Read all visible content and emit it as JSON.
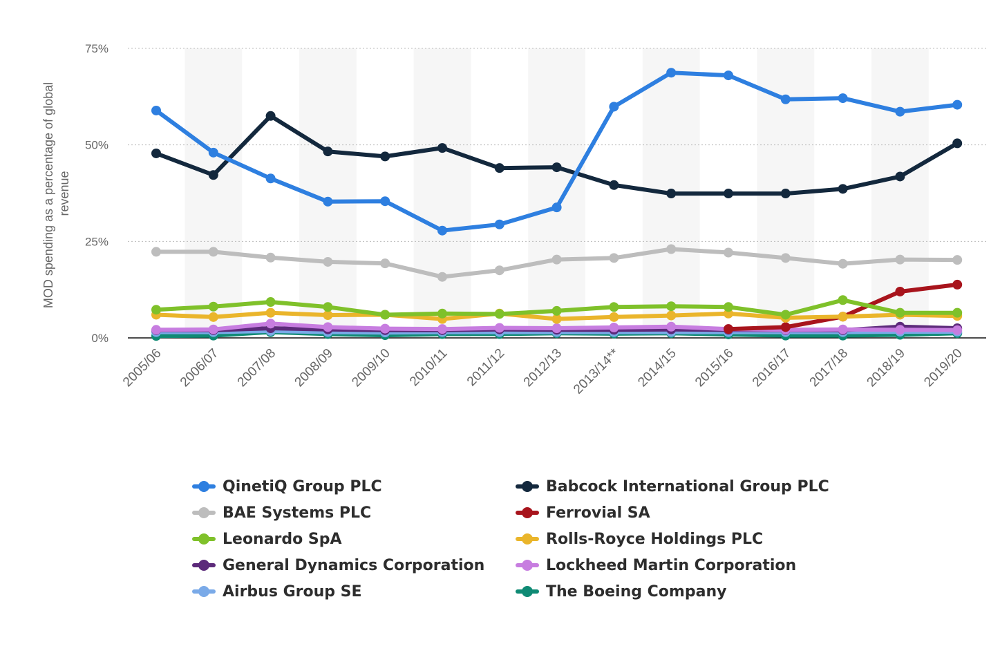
{
  "chart_data": {
    "type": "line",
    "title": "",
    "xlabel": "",
    "ylabel": "MOD spending as a percentage of global revenue",
    "ylim": [
      0,
      75
    ],
    "y_ticks": [
      "0%",
      "25%",
      "50%",
      "75%"
    ],
    "grid": true,
    "legend_position": "bottom",
    "categories": [
      "2005/06",
      "2006/07",
      "2007/08",
      "2008/09",
      "2009/10",
      "2010/11",
      "2011/12",
      "2012/13",
      "2013/14**",
      "2014/15",
      "2015/16",
      "2016/17",
      "2017/18",
      "2018/19",
      "2019/20"
    ],
    "series": [
      {
        "name": "The Boeing Company",
        "color": "#0f8a74",
        "values": [
          0.5,
          0.6,
          1.5,
          1.0,
          0.7,
          1.0,
          1.0,
          1.2,
          1.1,
          1.2,
          0.9,
          0.6,
          0.6,
          0.8,
          1.2
        ]
      },
      {
        "name": "Airbus Group SE",
        "color": "#7aaae8",
        "values": [
          1.5,
          1.5,
          1.8,
          1.5,
          1.4,
          1.5,
          1.5,
          1.5,
          1.5,
          1.5,
          1.5,
          1.5,
          1.5,
          1.6,
          1.6
        ]
      },
      {
        "name": "General Dynamics Corporation",
        "color": "#5c2a7a",
        "values": [
          2.0,
          2.0,
          2.5,
          2.2,
          2.0,
          2.0,
          2.2,
          2.1,
          2.1,
          2.2,
          2.1,
          2.0,
          2.0,
          2.9,
          2.5
        ]
      },
      {
        "name": "Lockheed Martin Corporation",
        "color": "#c77de0",
        "values": [
          2.1,
          2.2,
          3.7,
          2.8,
          2.4,
          2.3,
          2.6,
          2.5,
          2.7,
          2.9,
          2.3,
          2.1,
          2.2,
          2.1,
          2.0
        ]
      },
      {
        "name": "Ferrovial SA",
        "color": "#a8141c",
        "values": [
          null,
          null,
          null,
          null,
          null,
          null,
          null,
          null,
          null,
          null,
          2.3,
          2.8,
          5.5,
          12.0,
          13.8
        ]
      },
      {
        "name": "Rolls-Royce Holdings PLC",
        "color": "#eab52b",
        "values": [
          6.0,
          5.4,
          6.5,
          5.9,
          6.0,
          4.9,
          6.3,
          4.9,
          5.4,
          5.8,
          6.3,
          5.2,
          5.5,
          6.0,
          5.7
        ]
      },
      {
        "name": "Leonardo SpA",
        "color": "#7fc12a",
        "values": [
          7.3,
          8.1,
          9.3,
          8.0,
          6.0,
          6.3,
          6.2,
          7.0,
          8.0,
          8.2,
          8.0,
          6.0,
          9.8,
          6.5,
          6.5
        ]
      },
      {
        "name": "BAE Systems PLC",
        "color": "#bdbdbd",
        "values": [
          22.3,
          22.3,
          20.8,
          19.7,
          19.3,
          15.8,
          17.5,
          20.3,
          20.7,
          23.0,
          22.1,
          20.7,
          19.2,
          20.3,
          20.2
        ]
      },
      {
        "name": "Babcock International Group PLC",
        "color": "#13283d",
        "values": [
          47.8,
          42.2,
          57.5,
          48.3,
          47.0,
          49.2,
          44.0,
          44.2,
          39.6,
          37.4,
          37.4,
          37.4,
          38.6,
          41.8,
          50.4
        ]
      },
      {
        "name": "QinetiQ Group PLC",
        "color": "#2e7fe0",
        "values": [
          58.9,
          48.0,
          41.3,
          35.3,
          35.4,
          27.8,
          29.4,
          33.8,
          59.9,
          68.7,
          68.0,
          61.8,
          62.1,
          58.6,
          60.4
        ]
      }
    ]
  },
  "legend": {
    "items": [
      {
        "label": "QinetiQ Group PLC",
        "color": "#2e7fe0"
      },
      {
        "label": "Babcock International Group PLC",
        "color": "#13283d"
      },
      {
        "label": "BAE Systems PLC",
        "color": "#bdbdbd"
      },
      {
        "label": "Ferrovial SA",
        "color": "#a8141c"
      },
      {
        "label": "Leonardo SpA",
        "color": "#7fc12a"
      },
      {
        "label": "Rolls-Royce Holdings PLC",
        "color": "#eab52b"
      },
      {
        "label": "General Dynamics Corporation",
        "color": "#5c2a7a"
      },
      {
        "label": "Lockheed Martin Corporation",
        "color": "#c77de0"
      },
      {
        "label": "Airbus Group SE",
        "color": "#7aaae8"
      },
      {
        "label": "The Boeing Company",
        "color": "#0f8a74"
      }
    ]
  }
}
